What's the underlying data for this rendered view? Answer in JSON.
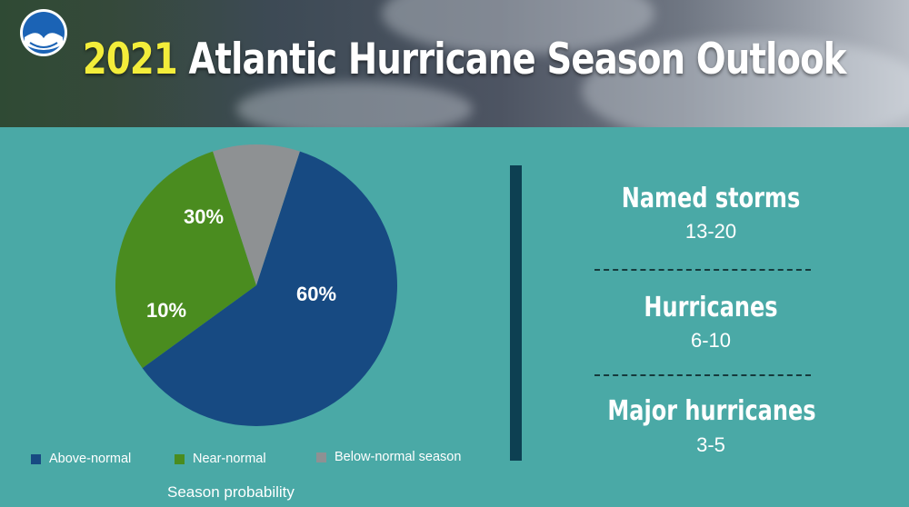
{
  "header": {
    "logo_text": "NOAA",
    "title_year": "2021",
    "title_rest": " Atlantic Hurricane Season Outlook"
  },
  "colors": {
    "above_normal": "#174a82",
    "near_normal": "#4a8c1f",
    "below_normal": "#8e9193",
    "background": "#4aa9a6",
    "year": "#f3ed3a",
    "divider": "#0d4052"
  },
  "chart_data": {
    "type": "pie",
    "title": "",
    "xlabel": "Season probability",
    "categories": [
      "Above-normal",
      "Near-normal",
      "Below-normal season"
    ],
    "values": [
      60,
      30,
      10
    ],
    "data_labels": [
      "60%",
      "30%",
      "10%"
    ],
    "legend": "bottom"
  },
  "stats": [
    {
      "label": "Named storms",
      "value": "13-20"
    },
    {
      "label": "Hurricanes",
      "value": "6-10"
    },
    {
      "label": "Major hurricanes",
      "value": "3-5"
    }
  ]
}
